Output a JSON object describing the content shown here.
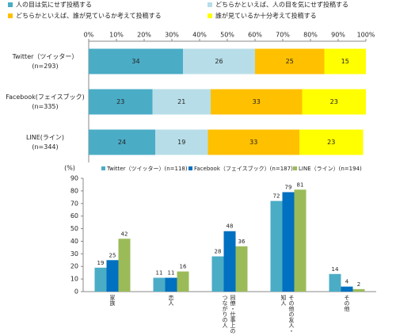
{
  "chart_data": [
    {
      "type": "stacked_barh",
      "categories": [
        "Twitter（ツイッター）",
        "Facebook(フェイスブック)",
        "LINE(ライン)"
      ],
      "sample_sizes": [
        "(n=293)",
        "(n=335)",
        "(n=344)"
      ],
      "series": [
        {
          "name": "人の目は気にせず投稿する",
          "color": "#4bacc6",
          "values": [
            34,
            23,
            24
          ]
        },
        {
          "name": "どちらかといえば、人の目を気にせず投稿する",
          "color": "#b7dee8",
          "values": [
            26,
            21,
            19
          ]
        },
        {
          "name": "どちらかといえば、誰が見ているか考えて投稿する",
          "color": "#ffc000",
          "values": [
            25,
            33,
            33
          ]
        },
        {
          "name": "誰が見ているか十分考えて投稿する",
          "color": "#ffff00",
          "values": [
            15,
            23,
            23
          ]
        }
      ],
      "xlim": [
        0,
        100
      ],
      "xticks": [
        {
          "value": 0,
          "label": "0%"
        },
        {
          "value": 10,
          "label": "10%"
        },
        {
          "value": 20,
          "label": "20%"
        },
        {
          "value": 30,
          "label": "30%"
        },
        {
          "value": 40,
          "label": "40%"
        },
        {
          "value": 50,
          "label": "50%"
        },
        {
          "value": 60,
          "label": "60%"
        },
        {
          "value": 70,
          "label": "70%"
        },
        {
          "value": 80,
          "label": "80%"
        },
        {
          "value": 90,
          "label": "90%"
        },
        {
          "value": 100,
          "label": "100%"
        }
      ],
      "grid": false
    },
    {
      "type": "bar",
      "y_label": "(%)",
      "categories": [
        "家族",
        "恋人",
        "同僚・仕事上のつながりの人",
        "その他の友人・知人",
        "その他"
      ],
      "series": [
        {
          "name": "Twitter（ツイッター）(n=118)",
          "color": "#4bacc6",
          "values": [
            19,
            11,
            28,
            72,
            14
          ]
        },
        {
          "name": "Facebook（フェイスブック）(n=187)",
          "color": "#0070c0",
          "values": [
            25,
            11,
            48,
            79,
            4
          ]
        },
        {
          "name": "LINE（ライン）(n=194)",
          "color": "#9bbb59",
          "values": [
            42,
            16,
            36,
            81,
            2
          ]
        }
      ],
      "ylim": [
        0,
        90
      ],
      "yticks": [
        0,
        10,
        20,
        30,
        40,
        50,
        60,
        70,
        80,
        90
      ],
      "grid": false
    }
  ]
}
